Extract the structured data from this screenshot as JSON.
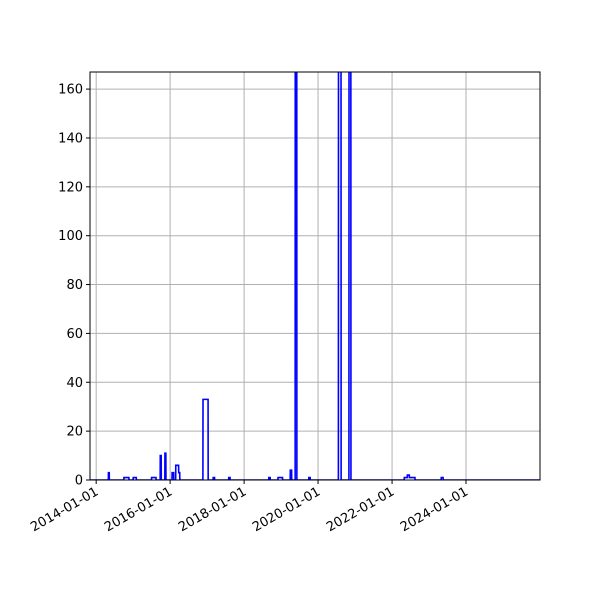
{
  "chart_data": {
    "type": "line",
    "title": "",
    "xlabel": "",
    "ylabel": "",
    "x_axis_type": "date",
    "xlim": [
      "2013-11-01",
      "2026-01-01"
    ],
    "ylim": [
      0,
      167
    ],
    "grid": true,
    "legend": "none",
    "x_ticks": [
      "2014-01-01",
      "2016-01-01",
      "2018-01-01",
      "2020-01-01",
      "2022-01-01",
      "2024-01-01"
    ],
    "y_ticks": [
      0,
      20,
      40,
      60,
      80,
      100,
      120,
      140,
      160
    ],
    "series": [
      {
        "color": "#0000ff",
        "points": [
          [
            "2013-11-01",
            0
          ],
          [
            "2014-05-01",
            0
          ],
          [
            "2014-05-02",
            3
          ],
          [
            "2014-05-10",
            3
          ],
          [
            "2014-05-11",
            0
          ],
          [
            "2014-10-01",
            0
          ],
          [
            "2014-10-02",
            1
          ],
          [
            "2014-11-20",
            1
          ],
          [
            "2014-11-21",
            0
          ],
          [
            "2015-01-01",
            0
          ],
          [
            "2015-01-02",
            1
          ],
          [
            "2015-02-01",
            1
          ],
          [
            "2015-02-02",
            0
          ],
          [
            "2015-07-01",
            0
          ],
          [
            "2015-07-02",
            1
          ],
          [
            "2015-08-15",
            1
          ],
          [
            "2015-08-16",
            0
          ],
          [
            "2015-09-25",
            0
          ],
          [
            "2015-09-26",
            10
          ],
          [
            "2015-10-05",
            10
          ],
          [
            "2015-10-06",
            0
          ],
          [
            "2015-11-10",
            0
          ],
          [
            "2015-11-11",
            11
          ],
          [
            "2015-11-20",
            11
          ],
          [
            "2015-11-21",
            0
          ],
          [
            "2016-01-20",
            0
          ],
          [
            "2016-01-21",
            3
          ],
          [
            "2016-02-05",
            3
          ],
          [
            "2016-02-06",
            0
          ],
          [
            "2016-02-25",
            0
          ],
          [
            "2016-02-26",
            6
          ],
          [
            "2016-03-25",
            6
          ],
          [
            "2016-03-26",
            3
          ],
          [
            "2016-04-05",
            3
          ],
          [
            "2016-04-06",
            0
          ],
          [
            "2016-11-20",
            0
          ],
          [
            "2016-11-21",
            33
          ],
          [
            "2017-01-10",
            33
          ],
          [
            "2017-01-11",
            0
          ],
          [
            "2017-03-01",
            0
          ],
          [
            "2017-03-02",
            1
          ],
          [
            "2017-03-15",
            1
          ],
          [
            "2017-03-16",
            0
          ],
          [
            "2017-08-01",
            0
          ],
          [
            "2017-08-02",
            1
          ],
          [
            "2017-08-15",
            1
          ],
          [
            "2017-08-16",
            0
          ],
          [
            "2018-09-01",
            0
          ],
          [
            "2018-09-02",
            1
          ],
          [
            "2018-09-15",
            1
          ],
          [
            "2018-09-16",
            0
          ],
          [
            "2018-12-01",
            0
          ],
          [
            "2018-12-02",
            1
          ],
          [
            "2019-01-15",
            1
          ],
          [
            "2019-01-16",
            0
          ],
          [
            "2019-04-01",
            0
          ],
          [
            "2019-04-02",
            4
          ],
          [
            "2019-04-15",
            4
          ],
          [
            "2019-04-16",
            0
          ],
          [
            "2019-05-20",
            0
          ],
          [
            "2019-05-21",
            170
          ],
          [
            "2019-06-05",
            170
          ],
          [
            "2019-06-06",
            0
          ],
          [
            "2019-10-01",
            0
          ],
          [
            "2019-10-02",
            1
          ],
          [
            "2019-10-15",
            1
          ],
          [
            "2019-10-16",
            0
          ],
          [
            "2020-07-20",
            0
          ],
          [
            "2020-07-21",
            170
          ],
          [
            "2020-08-15",
            170
          ],
          [
            "2020-08-16",
            0
          ],
          [
            "2020-11-01",
            0
          ],
          [
            "2020-11-02",
            170
          ],
          [
            "2020-11-20",
            170
          ],
          [
            "2020-11-21",
            0
          ],
          [
            "2022-05-01",
            0
          ],
          [
            "2022-05-02",
            1
          ],
          [
            "2022-05-31",
            1
          ],
          [
            "2022-06-01",
            2
          ],
          [
            "2022-06-20",
            2
          ],
          [
            "2022-06-21",
            1
          ],
          [
            "2022-08-15",
            1
          ],
          [
            "2022-08-16",
            0
          ],
          [
            "2023-05-01",
            0
          ],
          [
            "2023-05-02",
            1
          ],
          [
            "2023-05-20",
            1
          ],
          [
            "2023-05-21",
            0
          ],
          [
            "2026-01-01",
            0
          ]
        ]
      }
    ]
  }
}
